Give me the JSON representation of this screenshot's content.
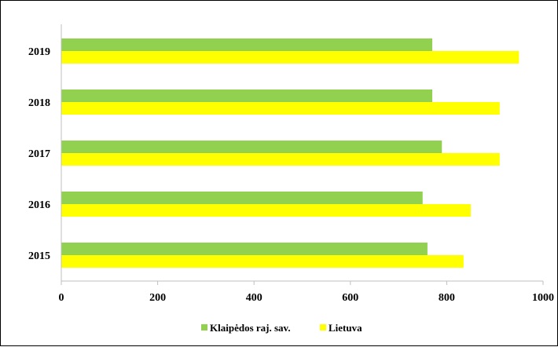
{
  "chart_data": {
    "type": "bar",
    "orientation": "horizontal",
    "title": "",
    "xlabel": "",
    "ylabel": "",
    "categories": [
      "2015",
      "2016",
      "2017",
      "2018",
      "2019"
    ],
    "series": [
      {
        "name": "Klaipėdos raj. sav.",
        "color": "#92d050",
        "values": [
          760,
          750,
          790,
          770,
          770
        ]
      },
      {
        "name": "Lietuva",
        "color": "#ffff00",
        "values": [
          835,
          850,
          910,
          910,
          950
        ]
      }
    ],
    "xlim": [
      0,
      1000
    ],
    "xticks": [
      0,
      200,
      400,
      600,
      800,
      1000
    ],
    "grid": false,
    "legend_position": "bottom"
  }
}
